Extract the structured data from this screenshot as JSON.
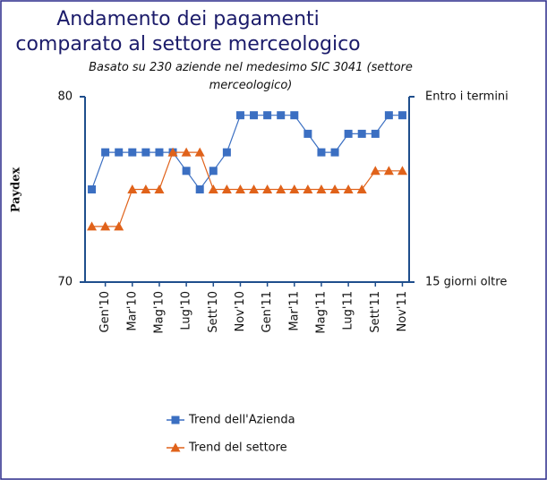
{
  "chart_data": {
    "type": "line",
    "title": "Andamento dei pagamenti comparato al settore merceologico",
    "subtitle": "Basato su 230 aziende nel medesimo SIC 3041 (settore merceologico)",
    "y_label": "Paydex",
    "categories": [
      null,
      "Gen'10",
      null,
      "Mar'10",
      null,
      "Mag'10",
      null,
      "Lug'10",
      null,
      "Sett'10",
      null,
      "Nov'10",
      null,
      "Gen'11",
      null,
      "Mar'11",
      null,
      "Mag'11",
      null,
      "Lug'11",
      null,
      "Sett'11",
      null,
      "Nov'11"
    ],
    "series": [
      {
        "name": "Trend dell'Azienda",
        "color": "#3b6fc2",
        "marker": "square",
        "values": [
          75,
          77,
          77,
          77,
          77,
          77,
          77,
          76,
          75,
          76,
          77,
          79,
          79,
          79,
          79,
          79,
          78,
          77,
          77,
          78,
          78,
          78,
          79,
          79
        ]
      },
      {
        "name": "Trend del settore",
        "color": "#e0621a",
        "marker": "triangle",
        "values": [
          73,
          73,
          73,
          75,
          75,
          75,
          77,
          77,
          77,
          75,
          75,
          75,
          75,
          75,
          75,
          75,
          75,
          75,
          75,
          75,
          75,
          76,
          76,
          76
        ]
      }
    ],
    "ylim": [
      70,
      80
    ],
    "yticks": [
      70,
      80
    ],
    "y2lim": [
      70,
      80
    ],
    "y2ticks": [
      {
        "value": 70,
        "label": "15 giorni oltre"
      },
      {
        "value": 80,
        "label": "Entro i termini"
      }
    ],
    "legend": "bottom"
  }
}
